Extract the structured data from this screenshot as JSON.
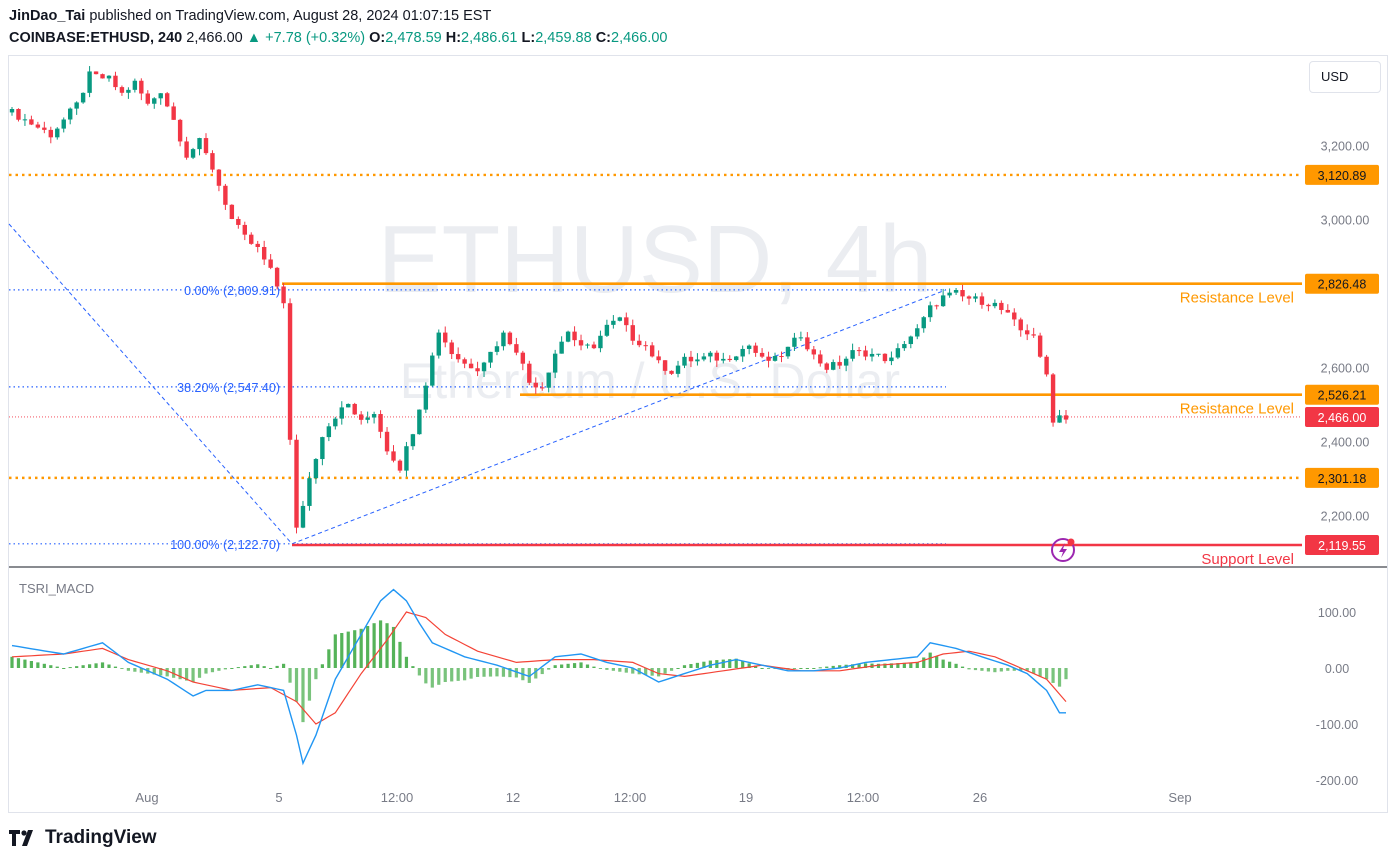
{
  "header": {
    "author": "JinDao_Tai",
    "published_text": "published on TradingView.com, August 28, 2024 01:07:15 EST",
    "symbol": "COINBASE:ETHUSD, 240",
    "price": "2,466.00",
    "change": "+7.78 (+0.32%)",
    "open_label": "O:",
    "open": "2,478.59",
    "high_label": "H:",
    "high": "2,486.61",
    "low_label": "L:",
    "low": "2,459.88",
    "close_label": "C:",
    "close": "2,466.00"
  },
  "currency_button": "USD",
  "brand": "TradingView",
  "watermark": {
    "symbol": "ETHUSD, 4h",
    "name": "Ethereum / U.S. Dollar"
  },
  "colors": {
    "up": "#089981",
    "down": "#f23645",
    "orange": "#ff9800",
    "fib": "#2962ff",
    "macd_line": "#2196f3",
    "signal_line": "#f44336",
    "hist": "#4caf50"
  },
  "chart_data": [
    {
      "type": "candlestick",
      "symbol": "COINBASE:ETHUSD",
      "interval": "4h",
      "ylim": [
        2060,
        3440
      ],
      "y_ticks": [
        "3,200.00",
        "3,000.00",
        "2,600.00",
        "2,400.00",
        "2,200.00"
      ],
      "x_ticks": [
        "Aug",
        "5",
        "12:00",
        "12",
        "12:00",
        "19",
        "12:00",
        "26",
        "Sep"
      ],
      "path_points": [
        [
          0,
          3290
        ],
        [
          6,
          3230
        ],
        [
          10,
          3310
        ],
        [
          12,
          3390
        ],
        [
          15,
          3380
        ],
        [
          17,
          3340
        ],
        [
          19,
          3370
        ],
        [
          21,
          3310
        ],
        [
          23,
          3350
        ],
        [
          25,
          3270
        ],
        [
          27,
          3175
        ],
        [
          29,
          3210
        ],
        [
          31,
          3140
        ],
        [
          34,
          3000
        ],
        [
          36,
          2950
        ],
        [
          38,
          2920
        ],
        [
          40,
          2860
        ],
        [
          42,
          2780
        ],
        [
          43,
          2400
        ],
        [
          44,
          2160
        ],
        [
          46,
          2300
        ],
        [
          48,
          2420
        ],
        [
          50,
          2470
        ],
        [
          52,
          2500
        ],
        [
          54,
          2450
        ],
        [
          56,
          2480
        ],
        [
          58,
          2380
        ],
        [
          60,
          2330
        ],
        [
          62,
          2430
        ],
        [
          64,
          2560
        ],
        [
          66,
          2700
        ],
        [
          68,
          2640
        ],
        [
          70,
          2610
        ],
        [
          72,
          2600
        ],
        [
          74,
          2640
        ],
        [
          76,
          2690
        ],
        [
          78,
          2650
        ],
        [
          80,
          2560
        ],
        [
          82,
          2550
        ],
        [
          84,
          2640
        ],
        [
          86,
          2700
        ],
        [
          88,
          2650
        ],
        [
          90,
          2660
        ],
        [
          92,
          2710
        ],
        [
          94,
          2730
        ],
        [
          96,
          2680
        ],
        [
          98,
          2660
        ],
        [
          100,
          2610
        ],
        [
          102,
          2590
        ],
        [
          104,
          2620
        ],
        [
          106,
          2620
        ],
        [
          108,
          2630
        ],
        [
          110,
          2620
        ],
        [
          112,
          2640
        ],
        [
          114,
          2660
        ],
        [
          116,
          2620
        ],
        [
          118,
          2620
        ],
        [
          120,
          2650
        ],
        [
          122,
          2690
        ],
        [
          124,
          2630
        ],
        [
          126,
          2600
        ],
        [
          128,
          2610
        ],
        [
          130,
          2640
        ],
        [
          132,
          2640
        ],
        [
          134,
          2630
        ],
        [
          136,
          2620
        ],
        [
          138,
          2670
        ],
        [
          140,
          2700
        ],
        [
          142,
          2760
        ],
        [
          144,
          2790
        ],
        [
          146,
          2800
        ],
        [
          147,
          2790
        ],
        [
          150,
          2780
        ],
        [
          152,
          2770
        ],
        [
          154,
          2740
        ],
        [
          156,
          2700
        ],
        [
          158,
          2690
        ],
        [
          159,
          2620
        ],
        [
          160,
          2580
        ],
        [
          161,
          2460
        ],
        [
          162,
          2470
        ],
        [
          163,
          2466
        ]
      ],
      "last_price": 2466.0,
      "levels": [
        {
          "price": 3120.89,
          "label": "3,120.89",
          "style": "dotted",
          "color": "#ff9800"
        },
        {
          "price": 2826.48,
          "label": "2,826.48",
          "style": "solid",
          "color": "#ff9800",
          "name": "Resistance Level"
        },
        {
          "price": 2526.21,
          "label": "2,526.21",
          "style": "solid",
          "color": "#ff9800",
          "name": "Resistance Level"
        },
        {
          "price": 2301.18,
          "label": "2,301.18",
          "style": "dotted",
          "color": "#ff9800"
        },
        {
          "price": 2119.55,
          "label": "2,119.55",
          "style": "solid",
          "color": "#f23645",
          "name": "Support Level"
        }
      ],
      "fib_levels": [
        {
          "ratio": "0.00%",
          "price": 2809.91,
          "label": "0.00% (2,809.91)"
        },
        {
          "ratio": "38.20%",
          "price": 2547.4,
          "label": "38.20% (2,547.40)"
        },
        {
          "ratio": "100.00%",
          "price": 2122.7,
          "label": "100.00% (2,122.70)"
        }
      ]
    },
    {
      "type": "line",
      "indicator": "TSRI_MACD",
      "ylim": [
        -200,
        175
      ],
      "y_ticks": [
        "100.00",
        "0.00",
        "-100.00",
        "-200.00"
      ],
      "macd_points": [
        [
          0,
          40
        ],
        [
          8,
          25
        ],
        [
          14,
          45
        ],
        [
          18,
          10
        ],
        [
          24,
          -20
        ],
        [
          28,
          -50
        ],
        [
          30,
          -40
        ],
        [
          34,
          -40
        ],
        [
          38,
          -30
        ],
        [
          42,
          -40
        ],
        [
          44,
          -120
        ],
        [
          45,
          -170
        ],
        [
          47,
          -120
        ],
        [
          50,
          -20
        ],
        [
          54,
          60
        ],
        [
          57,
          120
        ],
        [
          59,
          140
        ],
        [
          61,
          120
        ],
        [
          63,
          80
        ],
        [
          65,
          45
        ],
        [
          70,
          20
        ],
        [
          75,
          5
        ],
        [
          80,
          -15
        ],
        [
          84,
          20
        ],
        [
          88,
          25
        ],
        [
          92,
          10
        ],
        [
          96,
          0
        ],
        [
          100,
          -25
        ],
        [
          104,
          -10
        ],
        [
          108,
          5
        ],
        [
          112,
          15
        ],
        [
          116,
          5
        ],
        [
          120,
          -5
        ],
        [
          124,
          -5
        ],
        [
          128,
          0
        ],
        [
          132,
          10
        ],
        [
          136,
          15
        ],
        [
          140,
          20
        ],
        [
          142,
          45
        ],
        [
          146,
          35
        ],
        [
          150,
          20
        ],
        [
          154,
          5
        ],
        [
          157,
          -10
        ],
        [
          160,
          -40
        ],
        [
          162,
          -80
        ],
        [
          163,
          -80
        ]
      ],
      "signal_points": [
        [
          0,
          20
        ],
        [
          8,
          25
        ],
        [
          14,
          35
        ],
        [
          18,
          15
        ],
        [
          24,
          -5
        ],
        [
          28,
          -25
        ],
        [
          34,
          -40
        ],
        [
          40,
          -35
        ],
        [
          44,
          -60
        ],
        [
          47,
          -100
        ],
        [
          50,
          -80
        ],
        [
          54,
          -10
        ],
        [
          58,
          50
        ],
        [
          61,
          100
        ],
        [
          64,
          90
        ],
        [
          67,
          60
        ],
        [
          72,
          30
        ],
        [
          78,
          10
        ],
        [
          84,
          15
        ],
        [
          90,
          15
        ],
        [
          96,
          10
        ],
        [
          100,
          -10
        ],
        [
          104,
          -15
        ],
        [
          110,
          -5
        ],
        [
          116,
          5
        ],
        [
          122,
          -5
        ],
        [
          128,
          -5
        ],
        [
          134,
          5
        ],
        [
          140,
          10
        ],
        [
          144,
          25
        ],
        [
          148,
          30
        ],
        [
          152,
          20
        ],
        [
          156,
          0
        ],
        [
          160,
          -20
        ],
        [
          163,
          -60
        ]
      ]
    }
  ]
}
